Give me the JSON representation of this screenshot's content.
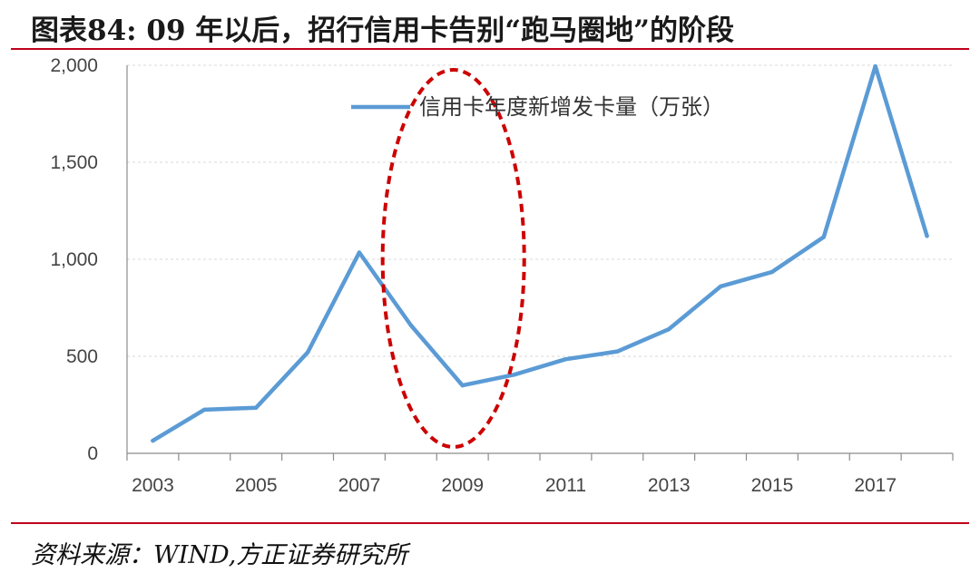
{
  "header": {
    "title": "图表84:  09 年以后，招行信用卡告别“跑马圈地”的阶段"
  },
  "footer": {
    "source": "资料来源：WIND,方正证券研究所"
  },
  "chart_data": {
    "type": "line",
    "title": "",
    "xlabel": "",
    "ylabel": "",
    "x": [
      2003,
      2004,
      2005,
      2006,
      2007,
      2008,
      2009,
      2010,
      2011,
      2012,
      2013,
      2014,
      2015,
      2016,
      2017,
      2018
    ],
    "x_tick_labels": [
      "2003",
      "2005",
      "2007",
      "2009",
      "2011",
      "2013",
      "2015",
      "2017"
    ],
    "y_tick_labels": [
      "0",
      "500",
      "1,000",
      "1,500",
      "2,000"
    ],
    "ylim": [
      0,
      2000
    ],
    "grid": true,
    "legend_position": "top",
    "series": [
      {
        "name": "信用卡年度新增发卡量（万张）",
        "color": "#5b9bd5",
        "values": [
          65,
          225,
          235,
          520,
          1035,
          660,
          350,
          405,
          485,
          525,
          640,
          860,
          935,
          1115,
          1995,
          1120
        ]
      }
    ],
    "annotation": {
      "shape": "dashed-ellipse",
      "color": "#cc0000",
      "around_x": 2009
    }
  }
}
